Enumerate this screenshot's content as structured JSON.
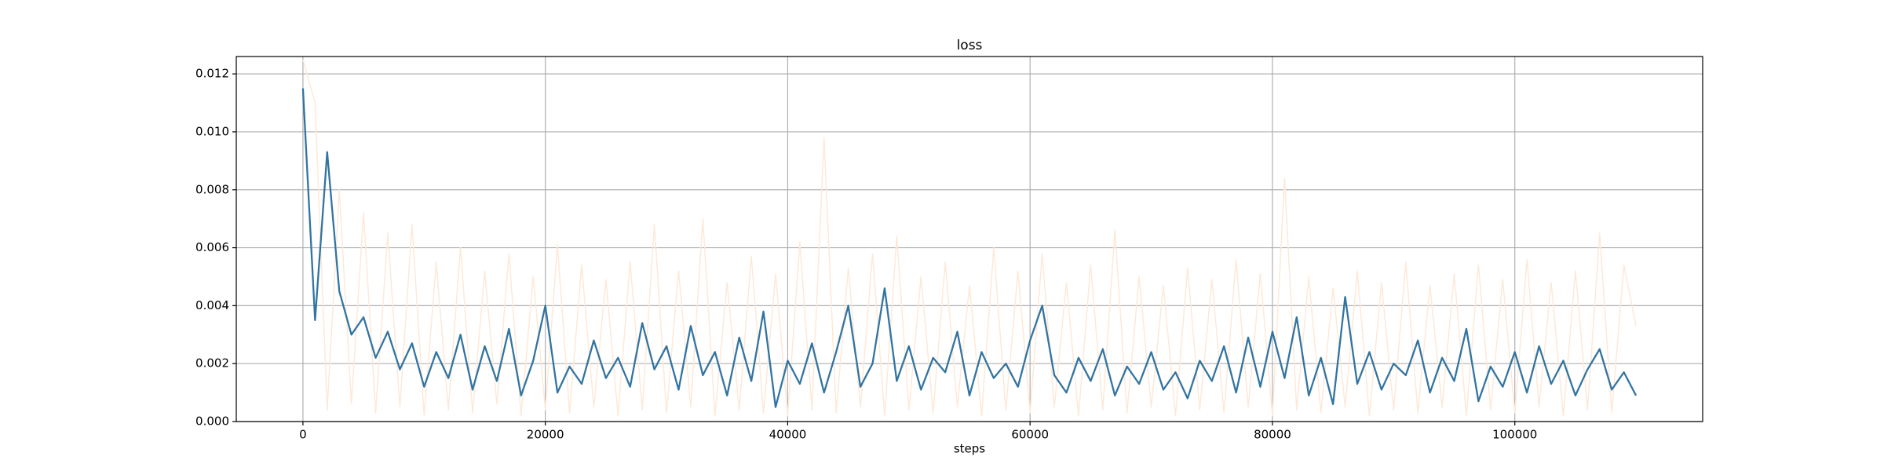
{
  "chart_data": {
    "type": "line",
    "title": "loss",
    "xlabel": "steps",
    "x": [
      0,
      1000,
      2000,
      3000,
      4000,
      5000,
      6000,
      7000,
      8000,
      9000,
      10000,
      11000,
      12000,
      13000,
      14000,
      15000,
      16000,
      17000,
      18000,
      19000,
      20000,
      21000,
      22000,
      23000,
      24000,
      25000,
      26000,
      27000,
      28000,
      29000,
      30000,
      31000,
      32000,
      33000,
      34000,
      35000,
      36000,
      37000,
      38000,
      39000,
      40000,
      41000,
      42000,
      43000,
      44000,
      45000,
      46000,
      47000,
      48000,
      49000,
      50000,
      51000,
      52000,
      53000,
      54000,
      55000,
      56000,
      57000,
      58000,
      59000,
      60000,
      61000,
      62000,
      63000,
      64000,
      65000,
      66000,
      67000,
      68000,
      69000,
      70000,
      71000,
      72000,
      73000,
      74000,
      75000,
      76000,
      77000,
      78000,
      79000,
      80000,
      81000,
      82000,
      83000,
      84000,
      85000,
      86000,
      87000,
      88000,
      89000,
      90000,
      91000,
      92000,
      93000,
      94000,
      95000,
      96000,
      97000,
      98000,
      99000,
      100000,
      101000,
      102000,
      103000,
      104000,
      105000,
      106000,
      107000,
      108000,
      109000,
      110000
    ],
    "series": [
      {
        "color": "#fde9d8",
        "values": [
          0.0125,
          0.011,
          0.0004,
          0.008,
          0.0006,
          0.0072,
          0.0003,
          0.0065,
          0.0005,
          0.0068,
          0.0002,
          0.0055,
          0.0004,
          0.006,
          0.0003,
          0.0052,
          0.0006,
          0.0058,
          0.0002,
          0.005,
          0.0004,
          0.0061,
          0.0003,
          0.0054,
          0.0005,
          0.0049,
          0.0002,
          0.0055,
          0.0004,
          0.0068,
          0.0003,
          0.0052,
          0.0005,
          0.007,
          0.0002,
          0.0048,
          0.0004,
          0.0057,
          0.0003,
          0.0051,
          0.0002,
          0.0062,
          0.0004,
          0.0098,
          0.0003,
          0.0053,
          0.0005,
          0.0058,
          0.0002,
          0.0064,
          0.0004,
          0.005,
          0.0003,
          0.0055,
          0.0005,
          0.0047,
          0.0002,
          0.006,
          0.0004,
          0.0052,
          0.0003,
          0.0058,
          0.0005,
          0.0048,
          0.0002,
          0.0054,
          0.0004,
          0.0066,
          0.0003,
          0.005,
          0.0005,
          0.0047,
          0.0002,
          0.0053,
          0.0004,
          0.0049,
          0.0003,
          0.0056,
          0.0005,
          0.0051,
          0.0002,
          0.0084,
          0.0004,
          0.005,
          0.0003,
          0.0046,
          0.0005,
          0.0052,
          0.0002,
          0.0048,
          0.0004,
          0.0055,
          0.0003,
          0.0047,
          0.0005,
          0.0051,
          0.0002,
          0.0054,
          0.0004,
          0.0049,
          0.0003,
          0.0056,
          0.0005,
          0.0048,
          0.0002,
          0.0052,
          0.0004,
          0.0065,
          0.0003,
          0.0054,
          0.0033
        ]
      },
      {
        "color": "#3274a1",
        "values": [
          0.0115,
          0.0035,
          0.0093,
          0.0045,
          0.003,
          0.0036,
          0.0022,
          0.0031,
          0.0018,
          0.0027,
          0.0012,
          0.0024,
          0.0015,
          0.003,
          0.0011,
          0.0026,
          0.0014,
          0.0032,
          0.0009,
          0.0021,
          0.004,
          0.001,
          0.0019,
          0.0013,
          0.0028,
          0.0015,
          0.0022,
          0.0012,
          0.0034,
          0.0018,
          0.0026,
          0.0011,
          0.0033,
          0.0016,
          0.0024,
          0.0009,
          0.0029,
          0.0014,
          0.0038,
          0.0005,
          0.0021,
          0.0013,
          0.0027,
          0.001,
          0.0024,
          0.004,
          0.0012,
          0.002,
          0.0046,
          0.0014,
          0.0026,
          0.0011,
          0.0022,
          0.0017,
          0.0031,
          0.0009,
          0.0024,
          0.0015,
          0.002,
          0.0012,
          0.0028,
          0.004,
          0.0016,
          0.001,
          0.0022,
          0.0014,
          0.0025,
          0.0009,
          0.0019,
          0.0013,
          0.0024,
          0.0011,
          0.0017,
          0.0008,
          0.0021,
          0.0014,
          0.0026,
          0.001,
          0.0029,
          0.0012,
          0.0031,
          0.0015,
          0.0036,
          0.0009,
          0.0022,
          0.0006,
          0.0043,
          0.0013,
          0.0024,
          0.0011,
          0.002,
          0.0016,
          0.0028,
          0.001,
          0.0022,
          0.0014,
          0.0032,
          0.0007,
          0.0019,
          0.0012,
          0.0024,
          0.001,
          0.0026,
          0.0013,
          0.0021,
          0.0009,
          0.0018,
          0.0025,
          0.0011,
          0.0017,
          0.0009
        ]
      }
    ],
    "xlim": [
      -5500,
      115500
    ],
    "ylim": [
      0,
      0.0126
    ],
    "xticks": [
      0,
      20000,
      40000,
      60000,
      80000,
      100000
    ],
    "yticks": [
      {
        "value": 0,
        "label": "0.000"
      },
      0.002,
      0.004,
      0.006,
      0.008,
      {
        "value": 0.01,
        "label": "0.010"
      },
      0.012
    ],
    "grid": true
  }
}
